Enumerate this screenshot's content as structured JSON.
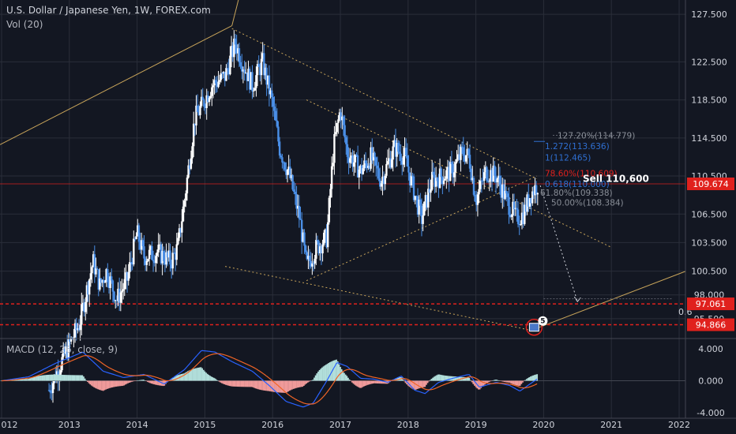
{
  "header": {
    "symbol_line": "U.S. Dollar / Japanese Yen, 1W, FOREX.com",
    "volume_label": "Vol (20)",
    "macd_label": "MACD (12, 26, close, 9)"
  },
  "colors": {
    "background": "#131722",
    "candle": "#ffffff",
    "grid": "#2a2e39",
    "trendline": "#c8a45a",
    "red_level": "#e0211d",
    "macd_line": "#2962ff",
    "signal_line": "#f06426"
  },
  "chart_data": [
    {
      "type": "candlestick",
      "title": "",
      "y_axis_ticks": [
        "127.500",
        "122.500",
        "118.500",
        "114.500",
        "110.500",
        "106.500",
        "103.500",
        "100.500",
        "98.000",
        "95.500"
      ],
      "x_axis_ticks": [
        "012",
        "2013",
        "2014",
        "2015",
        "2016",
        "2017",
        "2018",
        "2019",
        "2020",
        "2021",
        "2022"
      ],
      "ylim": [
        93.5,
        129
      ],
      "price_label": "109.674",
      "levels": [
        {
          "label": "97.061",
          "value": 97.061
        },
        {
          "label": "94.866",
          "value": 94.866
        }
      ],
      "fib_labels": [
        {
          "text": "127.20%(114.779)",
          "value": 114.779,
          "color": "#8a8f98"
        },
        {
          "text": "1.272(113.636)",
          "value": 113.636,
          "color": "#2f6fd1"
        },
        {
          "text": "1(112.465)",
          "value": 112.465,
          "color": "#2f6fd1"
        },
        {
          "text": "78.60%(110.609)",
          "value": 110.609,
          "color": "#e0211d"
        },
        {
          "text": "0.618(110.000)",
          "value": 110.0,
          "color": "#2f6fd1"
        },
        {
          "text": "61.80%(109.338)",
          "value": 109.338,
          "color": "#8a8f98"
        },
        {
          "text": "50.00%(108.384)",
          "value": 108.384,
          "color": "#8a8f98"
        }
      ],
      "sell_label": "Sell 110,600",
      "fib_tail_label": "0.6",
      "event_badge": "5",
      "path_points": [
        [
          2012.7,
          88.0
        ],
        [
          2012.95,
          92.0
        ],
        [
          2013.15,
          95.0
        ],
        [
          2013.35,
          101.5
        ],
        [
          2013.45,
          99.0
        ],
        [
          2013.55,
          100.5
        ],
        [
          2013.7,
          97.5
        ],
        [
          2013.85,
          99.5
        ],
        [
          2014.0,
          104.5
        ],
        [
          2014.1,
          102.0
        ],
        [
          2014.3,
          102.5
        ],
        [
          2014.5,
          101.5
        ],
        [
          2014.6,
          103.0
        ],
        [
          2014.7,
          108.0
        ],
        [
          2014.85,
          116.5
        ],
        [
          2015.0,
          118.5
        ],
        [
          2015.1,
          120.0
        ],
        [
          2015.3,
          121.0
        ],
        [
          2015.45,
          124.5
        ],
        [
          2015.55,
          122.5
        ],
        [
          2015.7,
          120.0
        ],
        [
          2015.85,
          122.5
        ],
        [
          2016.0,
          118.0
        ],
        [
          2016.1,
          113.5
        ],
        [
          2016.25,
          110.5
        ],
        [
          2016.4,
          106.0
        ],
        [
          2016.5,
          101.0
        ],
        [
          2016.65,
          103.0
        ],
        [
          2016.8,
          104.0
        ],
        [
          2016.9,
          113.5
        ],
        [
          2017.0,
          117.5
        ],
        [
          2017.1,
          113.0
        ],
        [
          2017.3,
          111.0
        ],
        [
          2017.45,
          112.5
        ],
        [
          2017.6,
          110.0
        ],
        [
          2017.8,
          113.5
        ],
        [
          2017.95,
          112.5
        ],
        [
          2018.1,
          108.5
        ],
        [
          2018.2,
          106.0
        ],
        [
          2018.35,
          110.0
        ],
        [
          2018.5,
          110.5
        ],
        [
          2018.65,
          111.0
        ],
        [
          2018.8,
          113.0
        ],
        [
          2018.9,
          112.5
        ],
        [
          2019.0,
          108.0
        ],
        [
          2019.15,
          111.0
        ],
        [
          2019.3,
          110.5
        ],
        [
          2019.45,
          108.0
        ],
        [
          2019.6,
          106.0
        ],
        [
          2019.7,
          106.5
        ],
        [
          2019.8,
          108.5
        ],
        [
          2019.92,
          109.7
        ]
      ],
      "macd_ticks": [
        "4.000",
        "0.000",
        "-4.000"
      ],
      "macd_ylim": [
        -4.7,
        5.2
      ],
      "macd_points": [
        [
          2012.0,
          0.0
        ],
        [
          2012.4,
          0.5
        ],
        [
          2012.8,
          2.2
        ],
        [
          2013.2,
          3.6
        ],
        [
          2013.5,
          1.2
        ],
        [
          2013.8,
          0.4
        ],
        [
          2014.1,
          0.8
        ],
        [
          2014.4,
          -0.4
        ],
        [
          2014.7,
          1.4
        ],
        [
          2014.95,
          3.8
        ],
        [
          2015.15,
          3.6
        ],
        [
          2015.4,
          2.4
        ],
        [
          2015.7,
          1.2
        ],
        [
          2015.95,
          -0.6
        ],
        [
          2016.2,
          -2.6
        ],
        [
          2016.45,
          -3.3
        ],
        [
          2016.6,
          -2.8
        ],
        [
          2016.8,
          0.0
        ],
        [
          2016.95,
          2.3
        ],
        [
          2017.1,
          1.8
        ],
        [
          2017.3,
          0.3
        ],
        [
          2017.5,
          0.2
        ],
        [
          2017.7,
          -0.2
        ],
        [
          2017.9,
          0.6
        ],
        [
          2018.1,
          -1.2
        ],
        [
          2018.25,
          -1.6
        ],
        [
          2018.45,
          -0.2
        ],
        [
          2018.7,
          0.4
        ],
        [
          2018.9,
          0.8
        ],
        [
          2019.05,
          -0.8
        ],
        [
          2019.3,
          -0.2
        ],
        [
          2019.5,
          -0.6
        ],
        [
          2019.65,
          -1.3
        ],
        [
          2019.8,
          -0.4
        ],
        [
          2019.92,
          0.3
        ]
      ]
    }
  ]
}
